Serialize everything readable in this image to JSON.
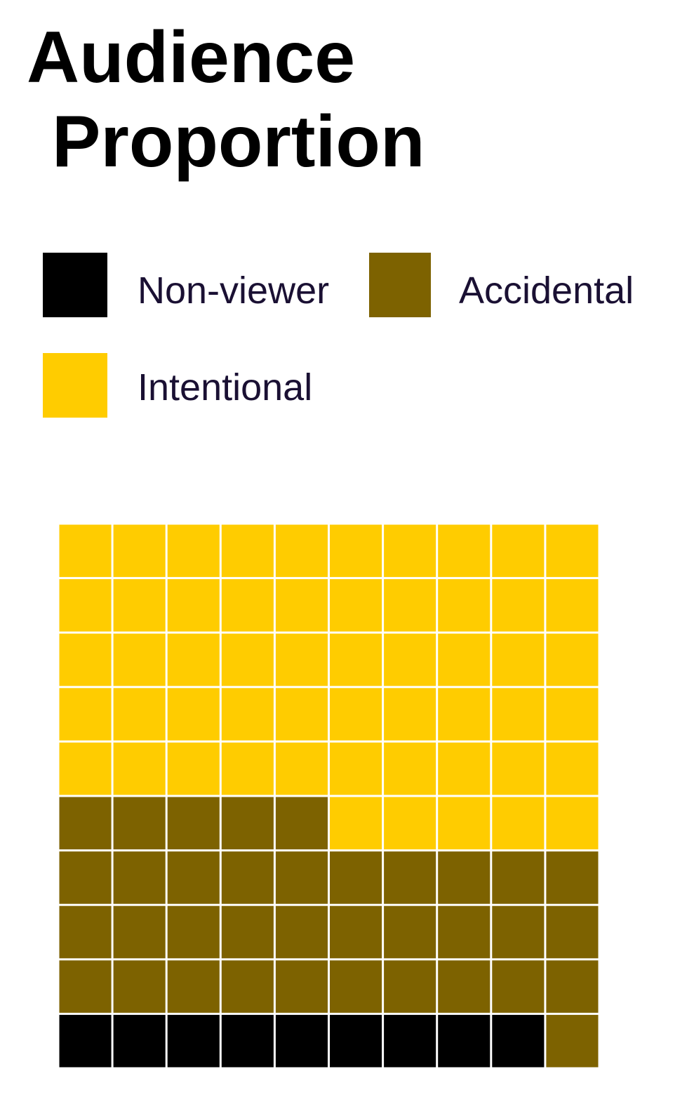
{
  "chart_data": {
    "type": "waffle",
    "title": "Audience Proportion",
    "title_lines": [
      "Audience",
      "Proportion"
    ],
    "grid": {
      "rows": 10,
      "cols": 10,
      "fill_order": "bottom-left, row by row"
    },
    "categories": [
      {
        "name": "Non-viewer",
        "value": 9,
        "color": "#000000"
      },
      {
        "name": "Accidental",
        "value": 36,
        "color": "#7d6200"
      },
      {
        "name": "Intentional",
        "value": 55,
        "color": "#ffcc00"
      }
    ],
    "legend": {
      "placement": "top",
      "items": [
        {
          "label": "Non-viewer",
          "color": "#000000"
        },
        {
          "label": "Accidental",
          "color": "#7d6200"
        },
        {
          "label": "Intentional",
          "color": "#ffcc00"
        }
      ]
    },
    "gap_color": "#ffffff"
  }
}
